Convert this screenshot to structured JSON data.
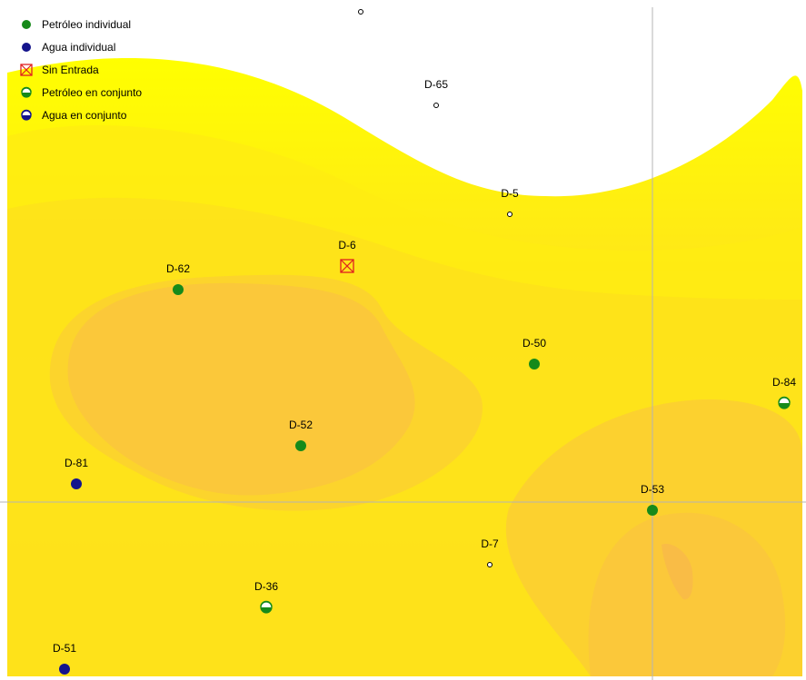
{
  "legend": [
    {
      "symbol": "oil-individual",
      "label": "Petróleo individual"
    },
    {
      "symbol": "water-individual",
      "label": "Agua individual"
    },
    {
      "symbol": "no-entry",
      "label": "Sin Entrada"
    },
    {
      "symbol": "oil-joint",
      "label": "Petróleo en conjunto"
    },
    {
      "symbol": "water-joint",
      "label": "Agua en conjunto"
    }
  ],
  "wells": [
    {
      "name": "D-65",
      "type": "none"
    },
    {
      "name": "D-5",
      "type": "none"
    },
    {
      "name": "D-6",
      "type": "no-entry"
    },
    {
      "name": "D-62",
      "type": "oil-individual"
    },
    {
      "name": "D-50",
      "type": "oil-individual"
    },
    {
      "name": "D-84",
      "type": "oil-joint"
    },
    {
      "name": "D-52",
      "type": "oil-individual"
    },
    {
      "name": "D-81",
      "type": "water-individual"
    },
    {
      "name": "D-53",
      "type": "oil-individual"
    },
    {
      "name": "D-7",
      "type": "none"
    },
    {
      "name": "D-36",
      "type": "oil-joint"
    },
    {
      "name": "D-51",
      "type": "water-individual"
    }
  ],
  "colors": {
    "oil": "#168a1a",
    "water": "#14148c",
    "no_entry": "#e02020",
    "band_light": "#ffff00",
    "band_mid": "#ffe21c",
    "band_dark": "#fbc83c",
    "crosshair": "#b4b4b4"
  }
}
